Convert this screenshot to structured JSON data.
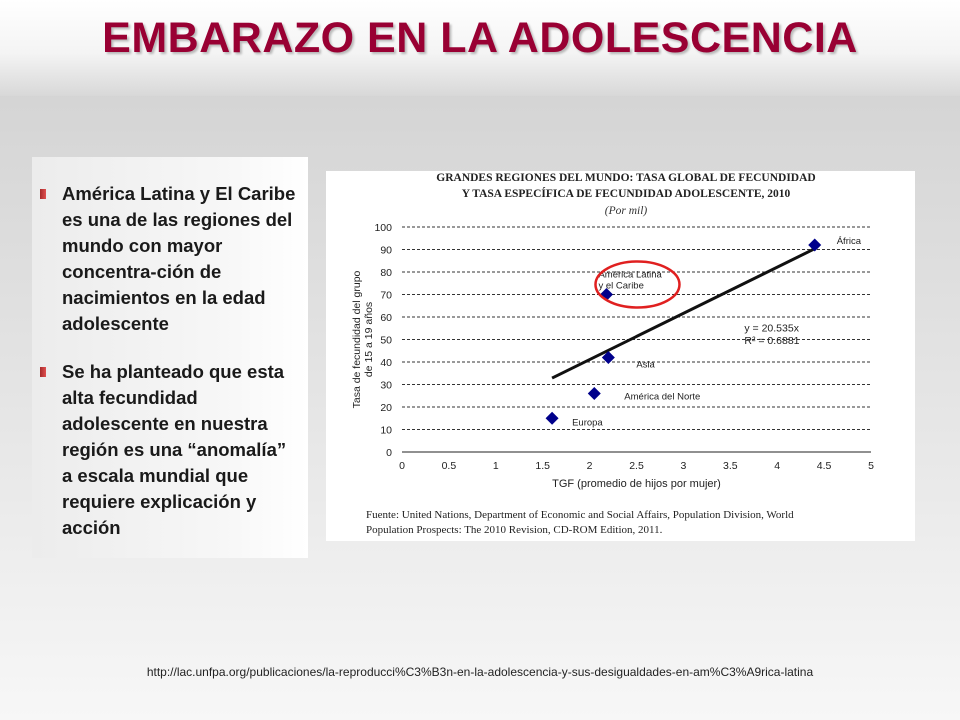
{
  "slide": {
    "title": "EMBARAZO EN LA ADOLESCENCIA",
    "bullets": [
      "América Latina y El Caribe es una de las regiones del mundo con mayor concentra-ción de nacimientos en la edad adolescente",
      " Se ha planteado que esta alta fecundidad adolescente en nuestra región es una “anomalía” a escala mundial que requiere explicación y acción"
    ],
    "source_url": "http://lac.unfpa.org/publicaciones/la-reproducci%C3%B3n-en-la-adolescencia-y-sus-desigualdades-en-am%C3%A9rica-latina"
  },
  "chart_data": {
    "type": "scatter",
    "title": [
      "GRANDES REGIONES DEL MUNDO: TASA GLOBAL DE FECUNDIDAD",
      "Y TASA ESPECÍFICA DE FECUNDIDAD ADOLESCENTE, 2010"
    ],
    "subtitle": "(Por mil)",
    "xlabel": "TGF (promedio de hijos por mujer)",
    "ylabel": [
      "Tasa de fecundidad del grupo",
      "de 15 a 19 años"
    ],
    "xlim": [
      0,
      5
    ],
    "ylim": [
      0,
      100
    ],
    "xticks": [
      0,
      0.5,
      1,
      1.5,
      2,
      2.5,
      3,
      3.5,
      4,
      4.5,
      5
    ],
    "xtick_labels": [
      "0",
      "0.5",
      "1",
      "1.5",
      "2",
      "2.5",
      "3",
      "3.5",
      "4",
      "4.5",
      "5"
    ],
    "yticks": [
      0,
      10,
      20,
      30,
      40,
      50,
      60,
      70,
      80,
      90,
      100
    ],
    "ytick_labels": [
      "0",
      "10",
      "20",
      "30",
      "40",
      "50",
      "60",
      "70",
      "80",
      "90",
      "100"
    ],
    "grid": "horizontal dashed",
    "points": [
      {
        "label": "África",
        "x": 4.4,
        "y": 92
      },
      {
        "label": [
          "América Latina",
          "y el Caribe"
        ],
        "x": 2.18,
        "y": 70,
        "highlighted": true
      },
      {
        "label": "Asia",
        "x": 2.2,
        "y": 42
      },
      {
        "label": "América del Norte",
        "x": 2.05,
        "y": 26
      },
      {
        "label": "Europa",
        "x": 1.6,
        "y": 15
      }
    ],
    "trendline": {
      "equation": "y = 20.535x",
      "r2": "R² = 0.6881",
      "x_range": [
        1.6,
        4.4
      ]
    },
    "colors": {
      "points": "#00008b",
      "highlight_circle": "#e02020",
      "trendline": "#111111"
    },
    "footnote": [
      "Fuente: United Nations, Department of Economic and Social Affairs, Population Division, World",
      "Population Prospects: The 2010 Revision, CD-ROM Edition, 2011."
    ]
  }
}
